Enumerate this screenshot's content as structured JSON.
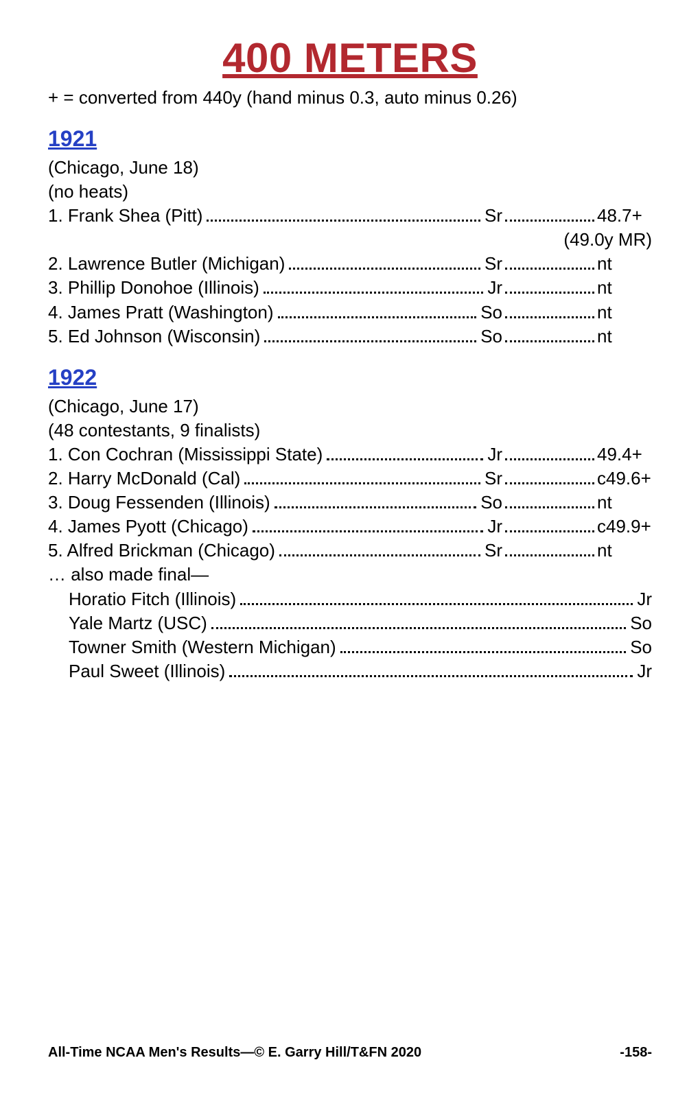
{
  "title": "400 METERS",
  "conversion_note": "+ = converted from 440y (hand minus 0.3, auto minus 0.26)",
  "sections": [
    {
      "year": "1921",
      "meta": [
        "(Chicago, June 18)",
        "(no heats)"
      ],
      "results": [
        {
          "place": "1.",
          "name": "Frank Shea (Pitt)",
          "class": "Sr",
          "time": "48.7+",
          "record": "(49.0y MR)"
        },
        {
          "place": "2.",
          "name": "Lawrence Butler (Michigan)",
          "class": "Sr",
          "time": "nt"
        },
        {
          "place": "3.",
          "name": "Phillip Donohoe (Illinois)",
          "class": "Jr",
          "time": "nt"
        },
        {
          "place": "4.",
          "name": "James Pratt (Washington)",
          "class": "So",
          "time": "nt"
        },
        {
          "place": "5.",
          "name": "Ed Johnson (Wisconsin)",
          "class": "So",
          "time": "nt"
        }
      ]
    },
    {
      "year": "1922",
      "meta": [
        "(Chicago, June 17)",
        "(48 contestants, 9 finalists)"
      ],
      "results": [
        {
          "place": "1.",
          "name": "Con Cochran (Mississippi State)",
          "class": "Jr",
          "time": "49.4+"
        },
        {
          "place": "2.",
          "name": "Harry McDonald (Cal)",
          "class": "Sr",
          "time": "c49.6+"
        },
        {
          "place": "3.",
          "name": "Doug Fessenden (Illinois)",
          "class": "So",
          "time": "nt"
        },
        {
          "place": "4.",
          "name": "James Pyott (Chicago)",
          "class": "Jr",
          "time": "c49.9+"
        },
        {
          "place": "5.",
          "name": "Alfred Brickman (Chicago)",
          "class": "Sr",
          "time": "nt"
        }
      ],
      "also_label": "… also made final—",
      "also": [
        {
          "name": "Horatio Fitch (Illinois)",
          "class": "Jr"
        },
        {
          "name": "Yale Martz (USC)",
          "class": "So"
        },
        {
          "name": "Towner Smith (Western Michigan)",
          "class": "So"
        },
        {
          "name": "Paul Sweet (Illinois)",
          "class": "Jr"
        }
      ]
    }
  ],
  "footer_left": "All-Time NCAA Men's Results—© E. Garry Hill/T&FN 2020",
  "footer_right": "-158-",
  "colors": {
    "title": "#b2282f",
    "year": "#2540c4",
    "text": "#000000",
    "bg": "#ffffff"
  }
}
